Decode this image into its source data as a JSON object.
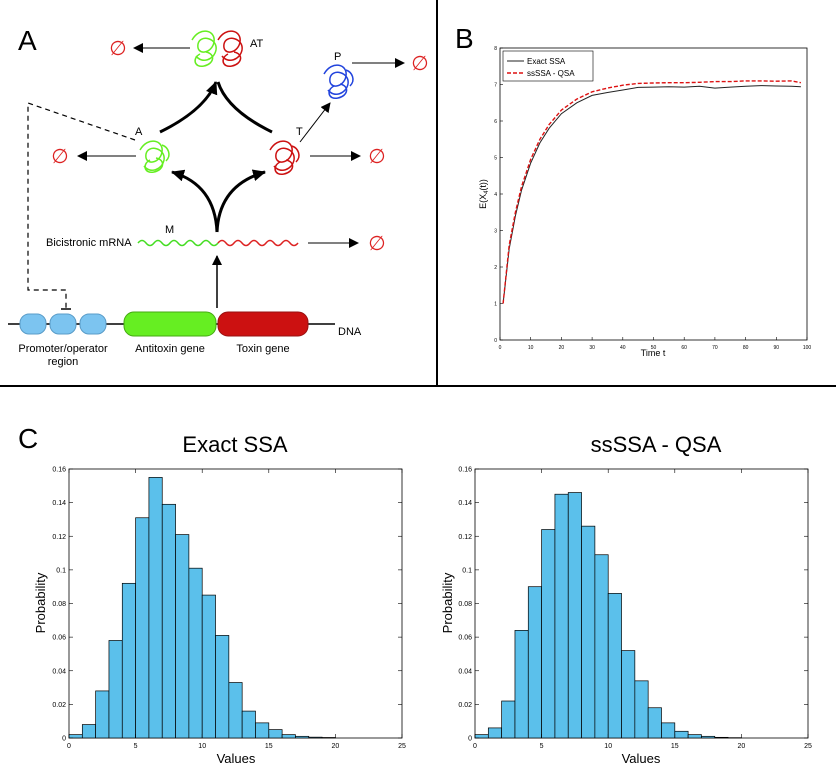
{
  "panel_labels": {
    "a": "A",
    "b": "B",
    "c": "C"
  },
  "diagram": {
    "null_symbol": "∅",
    "labels": {
      "at": "AT",
      "a": "A",
      "t": "T",
      "p": "P",
      "m": "M",
      "mrna": "Bicistronic mRNA",
      "dna": "DNA",
      "promoter_line1": "Promoter/operator",
      "promoter_line2": "region",
      "antitoxin_gene": "Antitoxin gene",
      "toxin_gene": "Toxin gene"
    },
    "colors": {
      "antitoxin": "#66ee22",
      "toxin": "#cc1111",
      "promoter": "#7cc4f0",
      "protein_p": "#2244dd",
      "null": "#dd2222"
    }
  },
  "chart_data": [
    {
      "id": "b",
      "type": "line",
      "title": "",
      "xlabel": "Time t",
      "ylabel_main": "E(X",
      "ylabel_sub": "4",
      "ylabel_tail": "(t))",
      "xlim": [
        0,
        100
      ],
      "ylim": [
        0,
        8
      ],
      "xticks": [
        0,
        10,
        20,
        30,
        40,
        50,
        60,
        70,
        80,
        90,
        100
      ],
      "yticks": [
        0,
        1,
        2,
        3,
        4,
        5,
        6,
        7,
        8
      ],
      "legend_position": "top-left",
      "series": [
        {
          "name": "Exact SSA",
          "color": "#222222",
          "dash": "solid",
          "x": [
            1,
            3,
            5,
            7,
            10,
            13,
            16,
            20,
            25,
            30,
            35,
            40,
            45,
            50,
            55,
            60,
            65,
            70,
            75,
            80,
            85,
            90,
            95,
            98
          ],
          "y": [
            1.0,
            2.5,
            3.4,
            4.1,
            4.85,
            5.4,
            5.8,
            6.2,
            6.5,
            6.7,
            6.78,
            6.85,
            6.92,
            6.93,
            6.94,
            6.93,
            6.95,
            6.9,
            6.93,
            6.95,
            6.97,
            6.96,
            6.95,
            6.94
          ]
        },
        {
          "name": "ssSSA - QSA",
          "color": "#dd1111",
          "dash": "dashed",
          "x": [
            1,
            3,
            5,
            7,
            10,
            13,
            16,
            20,
            25,
            30,
            35,
            40,
            45,
            50,
            55,
            60,
            65,
            70,
            75,
            80,
            85,
            90,
            95,
            98
          ],
          "y": [
            1.0,
            2.6,
            3.5,
            4.2,
            4.95,
            5.5,
            5.9,
            6.3,
            6.6,
            6.8,
            6.9,
            6.98,
            7.03,
            7.04,
            7.05,
            7.05,
            7.06,
            7.08,
            7.08,
            7.1,
            7.1,
            7.09,
            7.1,
            7.05
          ]
        }
      ]
    },
    {
      "id": "c1",
      "type": "bar",
      "title": "Exact SSA",
      "xlabel": "Values",
      "ylabel": "Probability",
      "xlim": [
        0,
        25
      ],
      "ylim": [
        0,
        0.16
      ],
      "xticks": [
        0,
        5,
        10,
        15,
        20,
        25
      ],
      "yticks": [
        0,
        0.02,
        0.04,
        0.06,
        0.08,
        0.1,
        0.12,
        0.14,
        0.16
      ],
      "bar_color": "#5bc0eb",
      "bin_width": 1,
      "bins": [
        0,
        1,
        2,
        3,
        4,
        5,
        6,
        7,
        8,
        9,
        10,
        11,
        12,
        13,
        14,
        15,
        16,
        17,
        18,
        19
      ],
      "values": [
        0.002,
        0.008,
        0.028,
        0.058,
        0.092,
        0.131,
        0.155,
        0.139,
        0.121,
        0.101,
        0.085,
        0.061,
        0.033,
        0.016,
        0.009,
        0.005,
        0.002,
        0.001,
        0.0005,
        0.0003
      ]
    },
    {
      "id": "c2",
      "type": "bar",
      "title": "ssSSA - QSA",
      "xlabel": "Values",
      "ylabel": "Probability",
      "xlim": [
        0,
        25
      ],
      "ylim": [
        0,
        0.16
      ],
      "xticks": [
        0,
        5,
        10,
        15,
        20,
        25
      ],
      "yticks": [
        0,
        0.02,
        0.04,
        0.06,
        0.08,
        0.1,
        0.12,
        0.14,
        0.16
      ],
      "bar_color": "#5bc0eb",
      "bin_width": 1,
      "bins": [
        0,
        1,
        2,
        3,
        4,
        5,
        6,
        7,
        8,
        9,
        10,
        11,
        12,
        13,
        14,
        15,
        16,
        17,
        18,
        19
      ],
      "values": [
        0.002,
        0.006,
        0.022,
        0.064,
        0.09,
        0.124,
        0.145,
        0.146,
        0.126,
        0.109,
        0.086,
        0.052,
        0.034,
        0.018,
        0.009,
        0.004,
        0.002,
        0.001,
        0.0004,
        0.0002
      ]
    }
  ]
}
